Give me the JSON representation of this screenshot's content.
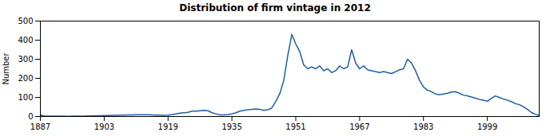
{
  "chart_data": {
    "type": "line",
    "title": "Distribution of firm vintage in 2012",
    "ylabel": "Number",
    "x": [
      1887,
      1888,
      1889,
      1890,
      1891,
      1892,
      1893,
      1894,
      1895,
      1896,
      1897,
      1898,
      1899,
      1900,
      1901,
      1902,
      1903,
      1904,
      1905,
      1906,
      1907,
      1908,
      1909,
      1910,
      1911,
      1912,
      1913,
      1914,
      1915,
      1916,
      1917,
      1918,
      1919,
      1920,
      1921,
      1922,
      1923,
      1924,
      1925,
      1926,
      1927,
      1928,
      1929,
      1930,
      1931,
      1932,
      1933,
      1934,
      1935,
      1936,
      1937,
      1938,
      1939,
      1940,
      1941,
      1942,
      1943,
      1944,
      1945,
      1946,
      1947,
      1948,
      1949,
      1950,
      1951,
      1952,
      1953,
      1954,
      1955,
      1956,
      1957,
      1958,
      1959,
      1960,
      1961,
      1962,
      1963,
      1964,
      1965,
      1966,
      1967,
      1968,
      1969,
      1970,
      1971,
      1972,
      1973,
      1974,
      1975,
      1976,
      1977,
      1978,
      1979,
      1980,
      1981,
      1982,
      1983,
      1984,
      1985,
      1986,
      1987,
      1988,
      1989,
      1990,
      1991,
      1992,
      1993,
      1994,
      1995,
      1996,
      1997,
      1998,
      1999,
      2000,
      2001,
      2002,
      2003,
      2004,
      2005,
      2006,
      2007,
      2008,
      2009,
      2010,
      2011,
      2012
    ],
    "values": [
      8,
      2,
      2,
      2,
      2,
      2,
      2,
      1,
      2,
      2,
      2,
      2,
      3,
      3,
      4,
      4,
      5,
      5,
      6,
      6,
      7,
      7,
      8,
      8,
      9,
      9,
      9,
      9,
      8,
      7,
      7,
      6,
      7,
      10,
      14,
      18,
      20,
      22,
      28,
      28,
      30,
      32,
      30,
      20,
      14,
      8,
      8,
      10,
      14,
      20,
      28,
      32,
      35,
      38,
      40,
      38,
      32,
      35,
      45,
      80,
      120,
      190,
      320,
      430,
      380,
      340,
      270,
      250,
      260,
      250,
      265,
      240,
      250,
      230,
      240,
      265,
      250,
      260,
      350,
      280,
      250,
      265,
      245,
      240,
      235,
      230,
      235,
      230,
      225,
      235,
      245,
      250,
      300,
      280,
      240,
      190,
      155,
      138,
      130,
      118,
      115,
      118,
      122,
      128,
      130,
      122,
      112,
      108,
      102,
      96,
      90,
      85,
      80,
      95,
      108,
      100,
      92,
      86,
      78,
      68,
      62,
      52,
      38,
      22,
      12,
      4
    ],
    "color": "#1f5fa6",
    "xlim": [
      1887,
      2012
    ],
    "ylim": [
      0,
      500
    ],
    "xticks": [
      1887,
      1903,
      1919,
      1935,
      1951,
      1967,
      1983,
      1999
    ],
    "yticks": [
      0,
      100,
      200,
      300,
      400,
      500
    ],
    "grid": false
  }
}
